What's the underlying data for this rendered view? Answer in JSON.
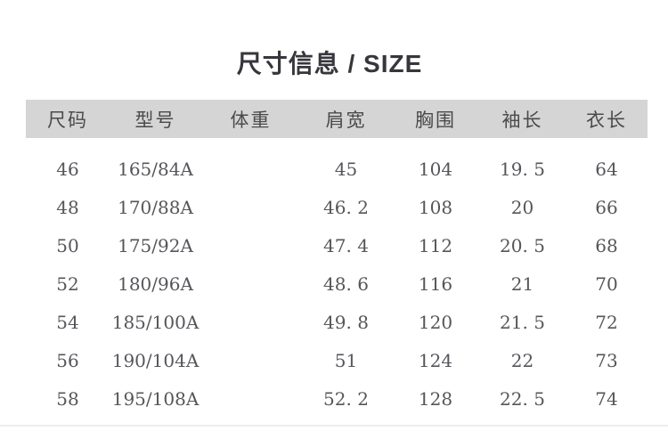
{
  "page": {
    "title": "尺寸信息 / SIZE"
  },
  "colors": {
    "title_text": "#36363c",
    "header_bg": "#d5d5d5",
    "header_text": "#4a4a4b",
    "body_text": "#55565a",
    "bottom_line": "#ededed"
  },
  "table": {
    "headers": [
      "尺码",
      "型号",
      "体重",
      "肩宽",
      "胸围",
      "袖长",
      "衣长"
    ],
    "rows": [
      [
        "46",
        "165/84A",
        "",
        "45",
        "104",
        "19. 5",
        "64"
      ],
      [
        "48",
        "170/88A",
        "",
        "46. 2",
        "108",
        "20",
        "66"
      ],
      [
        "50",
        "175/92A",
        "",
        "47. 4",
        "112",
        "20. 5",
        "68"
      ],
      [
        "52",
        "180/96A",
        "",
        "48. 6",
        "116",
        "21",
        "70"
      ],
      [
        "54",
        "185/100A",
        "",
        "49. 8",
        "120",
        "21. 5",
        "72"
      ],
      [
        "56",
        "190/104A",
        "",
        "51",
        "124",
        "22",
        "73"
      ],
      [
        "58",
        "195/108A",
        "",
        "52. 2",
        "128",
        "22. 5",
        "74"
      ]
    ]
  }
}
